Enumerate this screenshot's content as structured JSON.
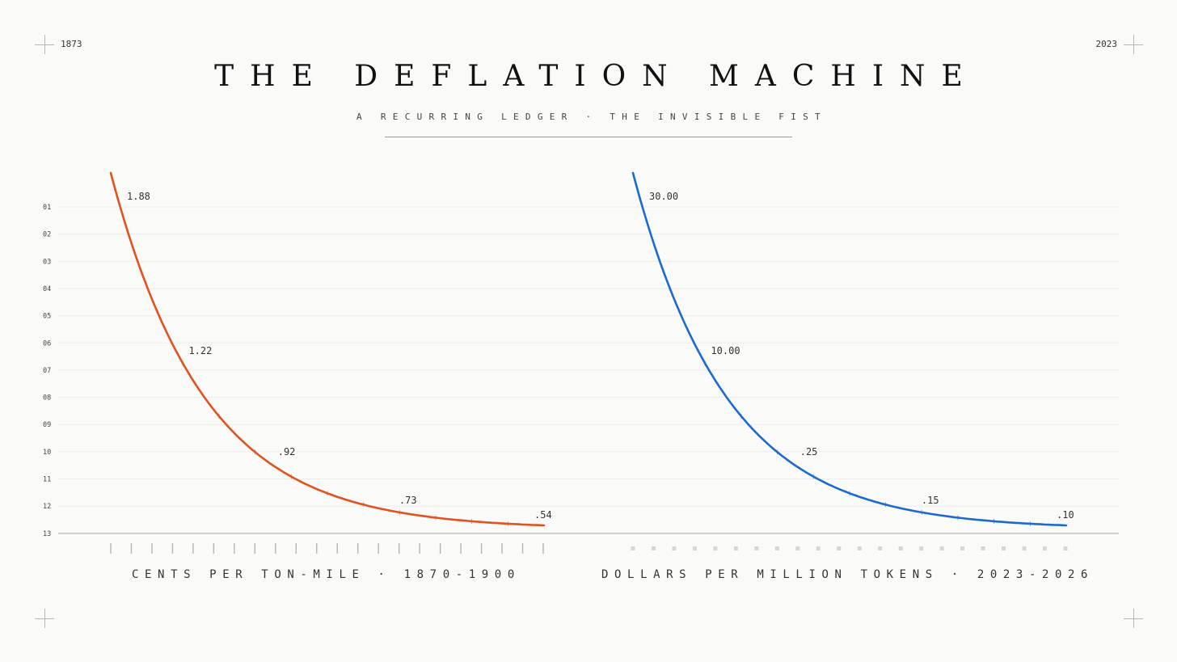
{
  "corners": {
    "left_year": "1873",
    "right_year": "2023"
  },
  "title": "THE DEFLATION MACHINE",
  "subtitle": "A RECURRING LEDGER · THE INVISIBLE FIST",
  "chart_data": {
    "type": "line",
    "row_labels": [
      "01",
      "02",
      "03",
      "04",
      "05",
      "06",
      "07",
      "08",
      "09",
      "10",
      "11",
      "12",
      "13"
    ],
    "grid": true,
    "panels": [
      {
        "caption": "CENTS PER TON-MILE · 1870-1900",
        "color": "#e0521f",
        "tick_style": "line",
        "tick_count": 22,
        "points": [
          {
            "x": 1870,
            "y": 1.88,
            "label": "1.88"
          },
          {
            "x": 1873,
            "y": 1.22,
            "label": "1.22"
          },
          {
            "x": 1880,
            "y": 0.92,
            "label": ".92"
          },
          {
            "x": 1890,
            "y": 0.73,
            "label": ".73"
          },
          {
            "x": 1900,
            "y": 0.54,
            "label": ".54"
          }
        ]
      },
      {
        "caption": "DOLLARS PER MILLION TOKENS · 2023-2026",
        "color": "#1a6ad0",
        "tick_style": "square",
        "tick_count": 22,
        "points": [
          {
            "x": 2023,
            "y": 30.0,
            "label": "30.00"
          },
          {
            "x": 2023.5,
            "y": 10.0,
            "label": "10.00"
          },
          {
            "x": 2024,
            "y": 0.25,
            "label": ".25"
          },
          {
            "x": 2025,
            "y": 0.15,
            "label": ".15"
          },
          {
            "x": 2026,
            "y": 0.1,
            "label": ".10"
          }
        ]
      }
    ]
  }
}
